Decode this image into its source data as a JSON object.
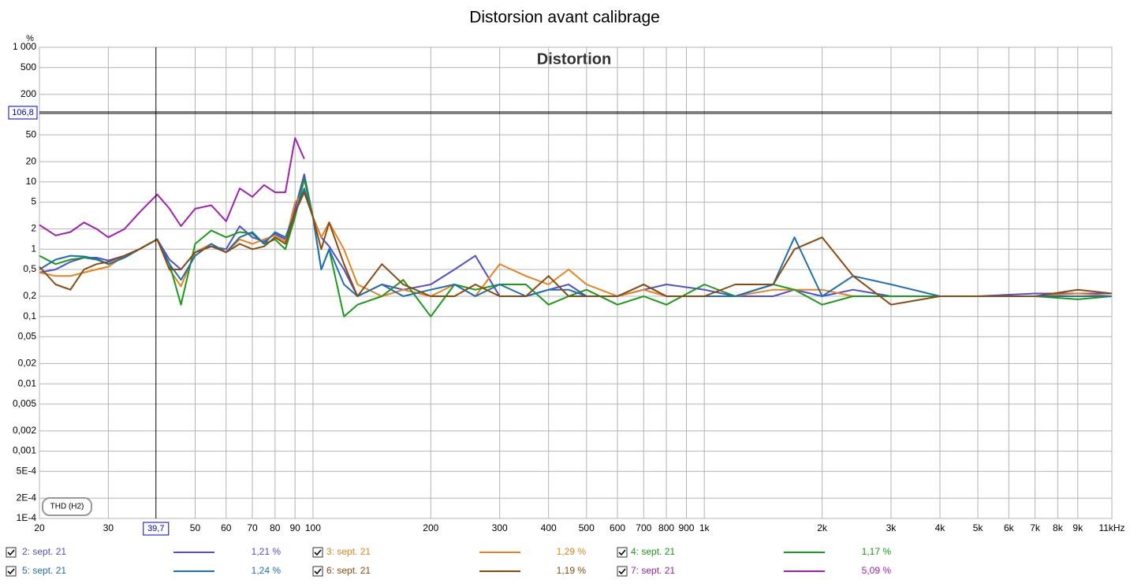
{
  "chart_data": {
    "type": "line",
    "title": "Distorsion avant calibrage",
    "plot_title": "Distortion",
    "y_unit": "%",
    "measure_label": "THD (H2)",
    "log_x": true,
    "log_y": true,
    "grid": true,
    "xlim": [
      20,
      11000
    ],
    "ylim": [
      0.0001,
      1000
    ],
    "xticks": [
      20,
      30,
      50,
      60,
      70,
      80,
      90,
      100,
      200,
      300,
      400,
      500,
      600,
      700,
      800,
      900,
      {
        "value": 1000,
        "label": "1k"
      },
      {
        "value": 2000,
        "label": "2k"
      },
      {
        "value": 3000,
        "label": "3k"
      },
      {
        "value": 4000,
        "label": "4k"
      },
      {
        "value": 5000,
        "label": "5k"
      },
      {
        "value": 6000,
        "label": "6k"
      },
      {
        "value": 7000,
        "label": "7k"
      },
      {
        "value": 8000,
        "label": "8k"
      },
      {
        "value": 9000,
        "label": "9k"
      },
      {
        "value": 11000,
        "label": "11kHz"
      }
    ],
    "yticks": [
      {
        "value": 1000,
        "label": "1 000"
      },
      500,
      200,
      50,
      20,
      10,
      5,
      2,
      1,
      {
        "value": 0.5,
        "label": "0,5"
      },
      {
        "value": 0.2,
        "label": "0,2"
      },
      {
        "value": 0.1,
        "label": "0,1"
      },
      {
        "value": 0.05,
        "label": "0,05"
      },
      {
        "value": 0.02,
        "label": "0,02"
      },
      {
        "value": 0.01,
        "label": "0,01"
      },
      {
        "value": 0.005,
        "label": "0,005"
      },
      {
        "value": 0.002,
        "label": "0,002"
      },
      {
        "value": 0.001,
        "label": "0,001"
      },
      {
        "value": 0.0005,
        "label": "5E-4"
      },
      {
        "value": 0.0002,
        "label": "2E-4"
      },
      {
        "value": 0.0001,
        "label": "1E-4"
      }
    ],
    "cursor": {
      "x": {
        "value": 39.7,
        "label": "39,7"
      },
      "y": {
        "value": 106.8,
        "label": "106,8"
      }
    },
    "x": [
      20,
      22,
      24,
      26,
      28,
      30,
      33,
      36,
      40,
      43,
      46,
      50,
      55,
      60,
      65,
      70,
      75,
      80,
      85,
      90,
      95,
      100,
      105,
      110,
      120,
      130,
      150,
      170,
      200,
      230,
      260,
      300,
      350,
      400,
      450,
      500,
      600,
      700,
      800,
      1000,
      1200,
      1500,
      1700,
      2000,
      2400,
      3000,
      4000,
      5000,
      7000,
      9000,
      11000
    ],
    "series": [
      {
        "name": "2: sept. 21",
        "color": "#4f4fd0",
        "legend_value": "1,21 %",
        "values": [
          0.45,
          0.5,
          0.65,
          0.75,
          0.75,
          0.68,
          0.8,
          1.0,
          1.4,
          0.7,
          0.5,
          0.9,
          1.1,
          1.0,
          2.2,
          1.5,
          1.3,
          1.7,
          1.4,
          4,
          13,
          3,
          1.5,
          1.1,
          0.5,
          0.2,
          0.3,
          0.25,
          0.3,
          0.5,
          0.8,
          0.2,
          0.2,
          0.25,
          0.3,
          0.2,
          0.2,
          0.25,
          0.3,
          0.25,
          0.2,
          0.2,
          0.25,
          0.2,
          0.25,
          0.2,
          0.2,
          0.2,
          0.22,
          0.22,
          0.22
        ]
      },
      {
        "name": "3: sept. 21",
        "color": "#e8821e",
        "legend_value": "1,29 %",
        "values": [
          0.45,
          0.4,
          0.4,
          0.45,
          0.5,
          0.55,
          0.8,
          1.0,
          1.4,
          0.5,
          0.28,
          0.9,
          1.2,
          0.9,
          1.4,
          1.2,
          1.4,
          1.6,
          1.3,
          5,
          7,
          3,
          1.5,
          2.5,
          1.0,
          0.3,
          0.2,
          0.25,
          0.2,
          0.3,
          0.2,
          0.6,
          0.4,
          0.3,
          0.5,
          0.3,
          0.2,
          0.25,
          0.2,
          0.2,
          0.2,
          0.25,
          0.25,
          0.25,
          0.2,
          0.2,
          0.2,
          0.2,
          0.2,
          0.22,
          0.2
        ]
      },
      {
        "name": "4: sept. 21",
        "color": "#1a9a1a",
        "legend_value": "1,17 %",
        "values": [
          0.8,
          0.6,
          0.7,
          0.75,
          0.7,
          0.6,
          0.75,
          1.0,
          1.4,
          0.6,
          0.15,
          1.2,
          1.9,
          1.5,
          1.8,
          1.7,
          1.2,
          1.4,
          1.0,
          3,
          11,
          3,
          0.5,
          1.0,
          0.1,
          0.15,
          0.2,
          0.35,
          0.1,
          0.3,
          0.25,
          0.3,
          0.3,
          0.15,
          0.2,
          0.25,
          0.15,
          0.2,
          0.15,
          0.3,
          0.2,
          0.3,
          0.25,
          0.15,
          0.2,
          0.2,
          0.2,
          0.2,
          0.2,
          0.18,
          0.2
        ]
      },
      {
        "name": "5: sept. 21",
        "color": "#1f6fb0",
        "legend_value": "1,24 %",
        "values": [
          0.5,
          0.7,
          0.8,
          0.78,
          0.72,
          0.6,
          0.75,
          1.0,
          1.4,
          0.6,
          0.35,
          0.8,
          1.2,
          0.9,
          1.5,
          1.8,
          1.2,
          1.8,
          1.5,
          3.5,
          8,
          3,
          0.5,
          1.0,
          0.3,
          0.2,
          0.3,
          0.2,
          0.25,
          0.3,
          0.2,
          0.3,
          0.2,
          0.25,
          0.25,
          0.2,
          0.2,
          0.3,
          0.2,
          0.2,
          0.2,
          0.3,
          1.5,
          0.2,
          0.4,
          0.3,
          0.2,
          0.2,
          0.2,
          0.2,
          0.2
        ]
      },
      {
        "name": "6: sept. 21",
        "color": "#8b4a10",
        "legend_value": "1,19 %",
        "values": [
          0.55,
          0.3,
          0.25,
          0.5,
          0.6,
          0.65,
          0.8,
          1.0,
          1.4,
          0.5,
          0.5,
          0.9,
          1.1,
          0.9,
          1.2,
          1.0,
          1.1,
          1.5,
          1.2,
          3.5,
          7,
          3,
          1.0,
          2.5,
          0.6,
          0.2,
          0.6,
          0.3,
          0.2,
          0.2,
          0.3,
          0.2,
          0.2,
          0.4,
          0.2,
          0.2,
          0.2,
          0.3,
          0.2,
          0.2,
          0.3,
          0.3,
          1.0,
          1.5,
          0.4,
          0.15,
          0.2,
          0.2,
          0.2,
          0.25,
          0.22
        ]
      },
      {
        "name": "7: sept. 21",
        "color": "#a020b0",
        "legend_value": "5,09 %",
        "values": [
          2.3,
          1.6,
          1.8,
          2.5,
          2,
          1.5,
          2,
          3.5,
          6.5,
          4,
          2.2,
          4,
          4.5,
          2.6,
          8,
          6,
          9,
          7,
          7,
          45,
          22,
          null,
          null,
          null,
          null,
          null,
          null,
          null,
          null,
          null,
          null,
          null,
          null,
          null,
          null,
          null,
          null,
          null,
          null,
          null,
          null,
          null,
          null,
          null,
          null,
          null,
          null,
          null,
          null,
          null,
          null
        ]
      }
    ]
  }
}
